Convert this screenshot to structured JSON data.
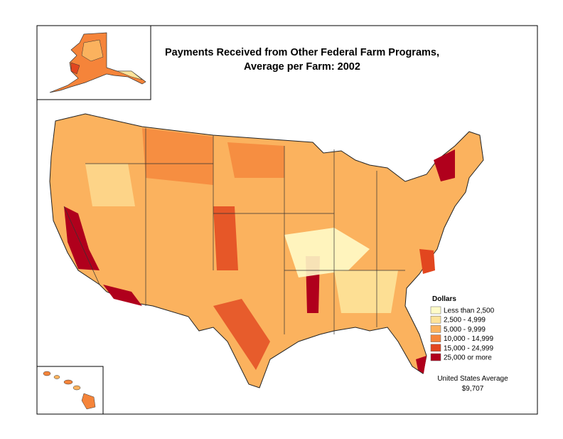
{
  "header": {
    "title_lines": [
      "Payments Received from Other Federal Farm Programs,",
      "Average per Farm:  2002"
    ]
  },
  "legend": {
    "title": "Dollars",
    "items": [
      {
        "label": "Less than 2,500",
        "color": "#fffbc8"
      },
      {
        "label": "2,500 - 4,999",
        "color": "#fde39a"
      },
      {
        "label": "5,000 - 9,999",
        "color": "#fbb25e"
      },
      {
        "label": "10,000 - 14,999",
        "color": "#f5843a"
      },
      {
        "label": "15,000 - 24,999",
        "color": "#e2461f"
      },
      {
        "label": "25,000 or more",
        "color": "#b0001c"
      }
    ]
  },
  "note": {
    "lines": [
      "United States Average",
      "$9,707"
    ]
  }
}
